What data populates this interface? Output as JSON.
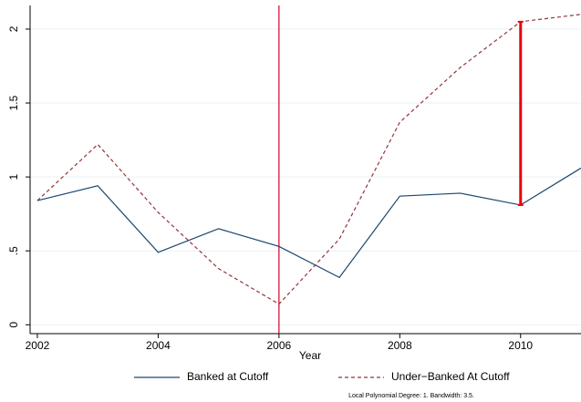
{
  "chart_data": {
    "type": "line",
    "x_label": "Year",
    "x": [
      2002,
      2003,
      2004,
      2005,
      2006,
      2007,
      2008,
      2009,
      2010,
      2011
    ],
    "series": [
      {
        "name": "Banked at Cutoff",
        "color": "#1a476f",
        "dash": "solid",
        "values": [
          0.84,
          0.94,
          0.49,
          0.65,
          0.53,
          0.32,
          0.87,
          0.89,
          0.81,
          1.06
        ]
      },
      {
        "name": "Under−Banked At Cutoff",
        "color": "#90353b",
        "dash": "dashed",
        "values": [
          0.84,
          1.22,
          0.76,
          0.38,
          0.14,
          0.58,
          1.37,
          1.74,
          2.05,
          2.1
        ]
      }
    ],
    "xline": 2006,
    "xline_color": "#d6002a",
    "gap_marker_index": 8,
    "gap_marker_color": "#e8000b",
    "xlim": [
      2001.88,
      2011
    ],
    "xticks": [
      2002,
      2004,
      2006,
      2008,
      2010
    ],
    "ylim": [
      -0.06,
      2.16
    ],
    "yticks": [
      0,
      {
        "value": 0.5,
        "label": ".5"
      },
      1,
      1.5,
      2
    ],
    "grid": true,
    "legend": "bottom",
    "note": "Local Polynomial Degree: 1. Bandwidth: 3.5."
  }
}
